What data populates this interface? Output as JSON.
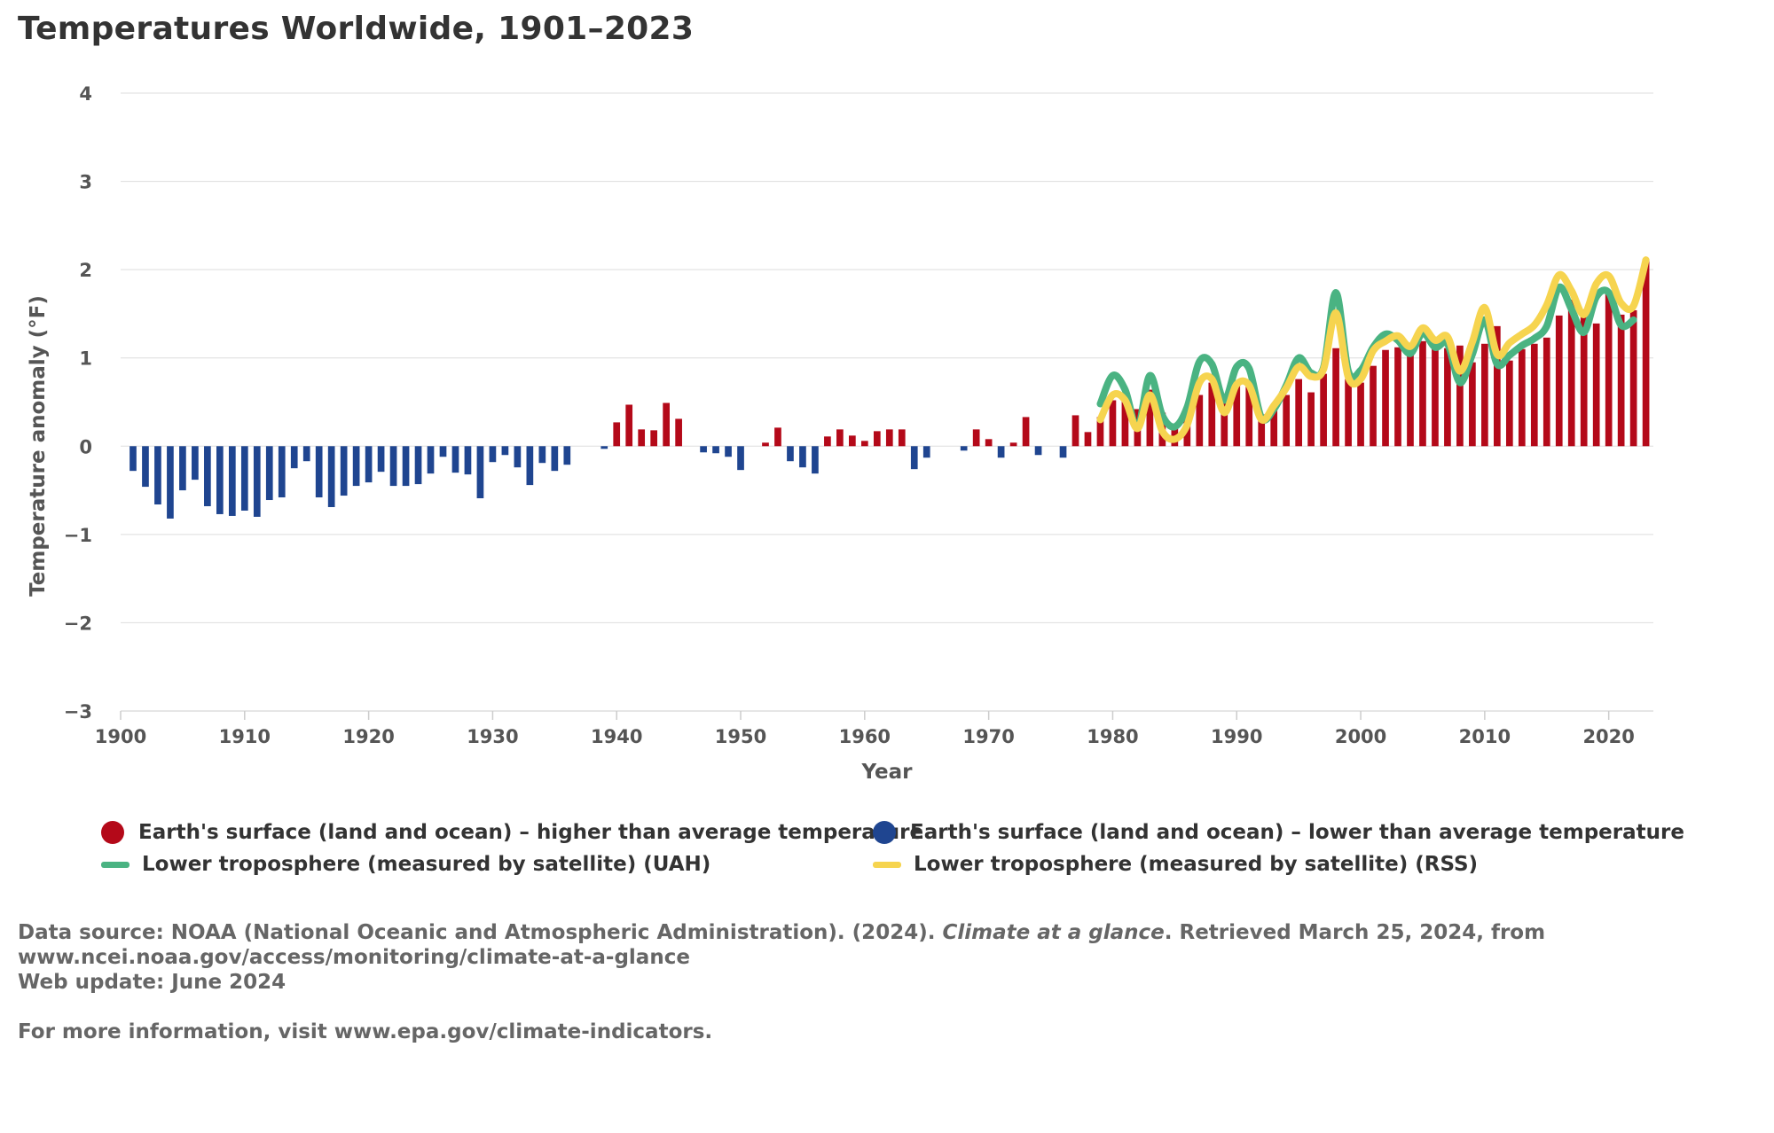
{
  "title": "Temperatures Worldwide, 1901–2023",
  "colors": {
    "above": "#b40919",
    "below": "#1f4590",
    "uah": "#4ab382",
    "rss": "#f6d44f",
    "grid": "#dddddd",
    "axis_text": "#555555"
  },
  "legend": {
    "above_label": "Earth's surface (land and ocean) – higher than average temperature",
    "below_label": "Earth's surface (land and ocean) – lower than average temperature",
    "uah_label": "Lower troposphere (measured by satellite) (UAH)",
    "rss_label": "Lower troposphere (measured by satellite) (RSS)"
  },
  "notes": {
    "source_prefix": "Data source: NOAA (National Oceanic and Atmospheric Administration). (2024). ",
    "source_title": "Climate at a glance",
    "source_suffix": ". Retrieved March 25, 2024, from",
    "source_url": "www.ncei.noaa.gov/access/monitoring/climate-at-a-glance",
    "web_update": "Web update: June 2024",
    "more_info": "For more information, visit www.epa.gov/climate-indicators."
  },
  "chart_data": {
    "type": "bar",
    "title": "Temperatures Worldwide, 1901–2023",
    "xlabel": "Year",
    "ylabel": "Temperature anomaly (°F)",
    "xlim": [
      1900,
      2023
    ],
    "ylim": [
      -3,
      4
    ],
    "x_ticks": [
      1900,
      1910,
      1920,
      1930,
      1940,
      1950,
      1960,
      1970,
      1980,
      1990,
      2000,
      2010,
      2020
    ],
    "y_ticks": [
      -3,
      -2,
      -1,
      0,
      1,
      2,
      3,
      4
    ],
    "grid": true,
    "legend_position": "bottom",
    "surface": {
      "start_year": 1901,
      "values": [
        -0.28,
        -0.46,
        -0.66,
        -0.82,
        -0.5,
        -0.38,
        -0.68,
        -0.77,
        -0.79,
        -0.73,
        -0.8,
        -0.61,
        -0.58,
        -0.25,
        -0.17,
        -0.58,
        -0.69,
        -0.56,
        -0.45,
        -0.41,
        -0.29,
        -0.45,
        -0.45,
        -0.43,
        -0.31,
        -0.12,
        -0.3,
        -0.32,
        -0.59,
        -0.18,
        -0.1,
        -0.24,
        -0.44,
        -0.19,
        -0.28,
        -0.21,
        0.0,
        0.0,
        -0.03,
        0.27,
        0.47,
        0.19,
        0.18,
        0.49,
        0.31,
        0.0,
        -0.07,
        -0.08,
        -0.12,
        -0.27,
        0.0,
        0.04,
        0.21,
        -0.17,
        -0.24,
        -0.31,
        0.11,
        0.19,
        0.12,
        0.06,
        0.17,
        0.19,
        0.19,
        -0.26,
        -0.13,
        0.0,
        0.0,
        -0.05,
        0.19,
        0.08,
        -0.13,
        0.04,
        0.33,
        -0.1,
        0.0,
        -0.13,
        0.35,
        0.16,
        0.33,
        0.52,
        0.58,
        0.42,
        0.64,
        0.38,
        0.23,
        0.3,
        0.58,
        0.72,
        0.51,
        0.73,
        0.68,
        0.36,
        0.41,
        0.58,
        0.76,
        0.61,
        0.82,
        1.11,
        0.76,
        0.72,
        0.91,
        1.09,
        1.12,
        1.05,
        1.19,
        1.15,
        1.11,
        1.14,
        0.95,
        1.16,
        1.36,
        0.97,
        1.1,
        1.16,
        1.23,
        1.48,
        1.66,
        1.55,
        1.39,
        1.73,
        1.49,
        1.54,
        2.12
      ]
    },
    "series": [
      {
        "name": "Lower troposphere (measured by satellite) (UAH)",
        "start_year": 1979,
        "values": [
          0.48,
          0.8,
          0.64,
          0.21,
          0.8,
          0.35,
          0.22,
          0.44,
          0.96,
          0.93,
          0.52,
          0.9,
          0.88,
          0.32,
          0.42,
          0.69,
          1.0,
          0.83,
          0.89,
          1.74,
          0.85,
          0.86,
          1.12,
          1.27,
          1.2,
          1.05,
          1.28,
          1.12,
          1.16,
          0.72,
          1.04,
          1.43,
          0.93,
          1.03,
          1.14,
          1.22,
          1.36,
          1.8,
          1.55,
          1.29,
          1.69,
          1.74,
          1.37,
          1.43
        ]
      },
      {
        "name": "Lower troposphere (measured by satellite) (RSS)",
        "start_year": 1979,
        "values": [
          0.3,
          0.58,
          0.52,
          0.2,
          0.58,
          0.17,
          0.08,
          0.24,
          0.72,
          0.76,
          0.38,
          0.7,
          0.69,
          0.3,
          0.46,
          0.66,
          0.9,
          0.79,
          0.87,
          1.51,
          0.78,
          0.76,
          1.08,
          1.19,
          1.25,
          1.13,
          1.34,
          1.2,
          1.24,
          0.85,
          1.18,
          1.57,
          1.04,
          1.17,
          1.27,
          1.37,
          1.6,
          1.94,
          1.76,
          1.49,
          1.84,
          1.93,
          1.62,
          1.59,
          2.11
        ]
      }
    ]
  }
}
